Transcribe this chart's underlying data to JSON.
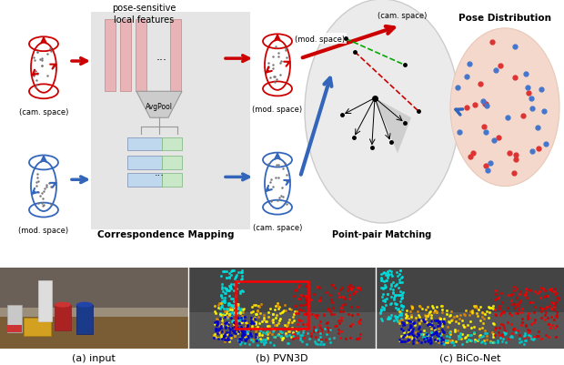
{
  "bg_color": "#ffffff",
  "red_color": "#cc0000",
  "blue_color": "#3366bb",
  "pink_bar_color": "#e8b4b8",
  "light_blue_bar": "#c0d8ee",
  "light_green_bar": "#c8e8c8",
  "scatter_red": "#dd3333",
  "scatter_blue": "#4477cc",
  "gray_bg": "#e8e8e8",
  "top_labels": {
    "cam_space_top": "(cam. space)",
    "mod_space_top": "(mod. space)",
    "mod_space_bottom": "(mod. space)",
    "cam_space_bottom": "(cam. space)",
    "correspondence_mapping": "Correspondence Mapping",
    "pose_distribution": "Pose Distribution",
    "pose_sensitive": "pose-sensitive\nlocal features",
    "avgpool": "AvgPool",
    "cam_space_arrow": "(cam. space)",
    "mod_space_arrow": "(mod. space)",
    "point_pair": "Point-pair Matching"
  },
  "bottom_labels": {
    "a": "(a) input",
    "b": "(b) PVN3D",
    "c": "(c) BiCo-Net"
  }
}
